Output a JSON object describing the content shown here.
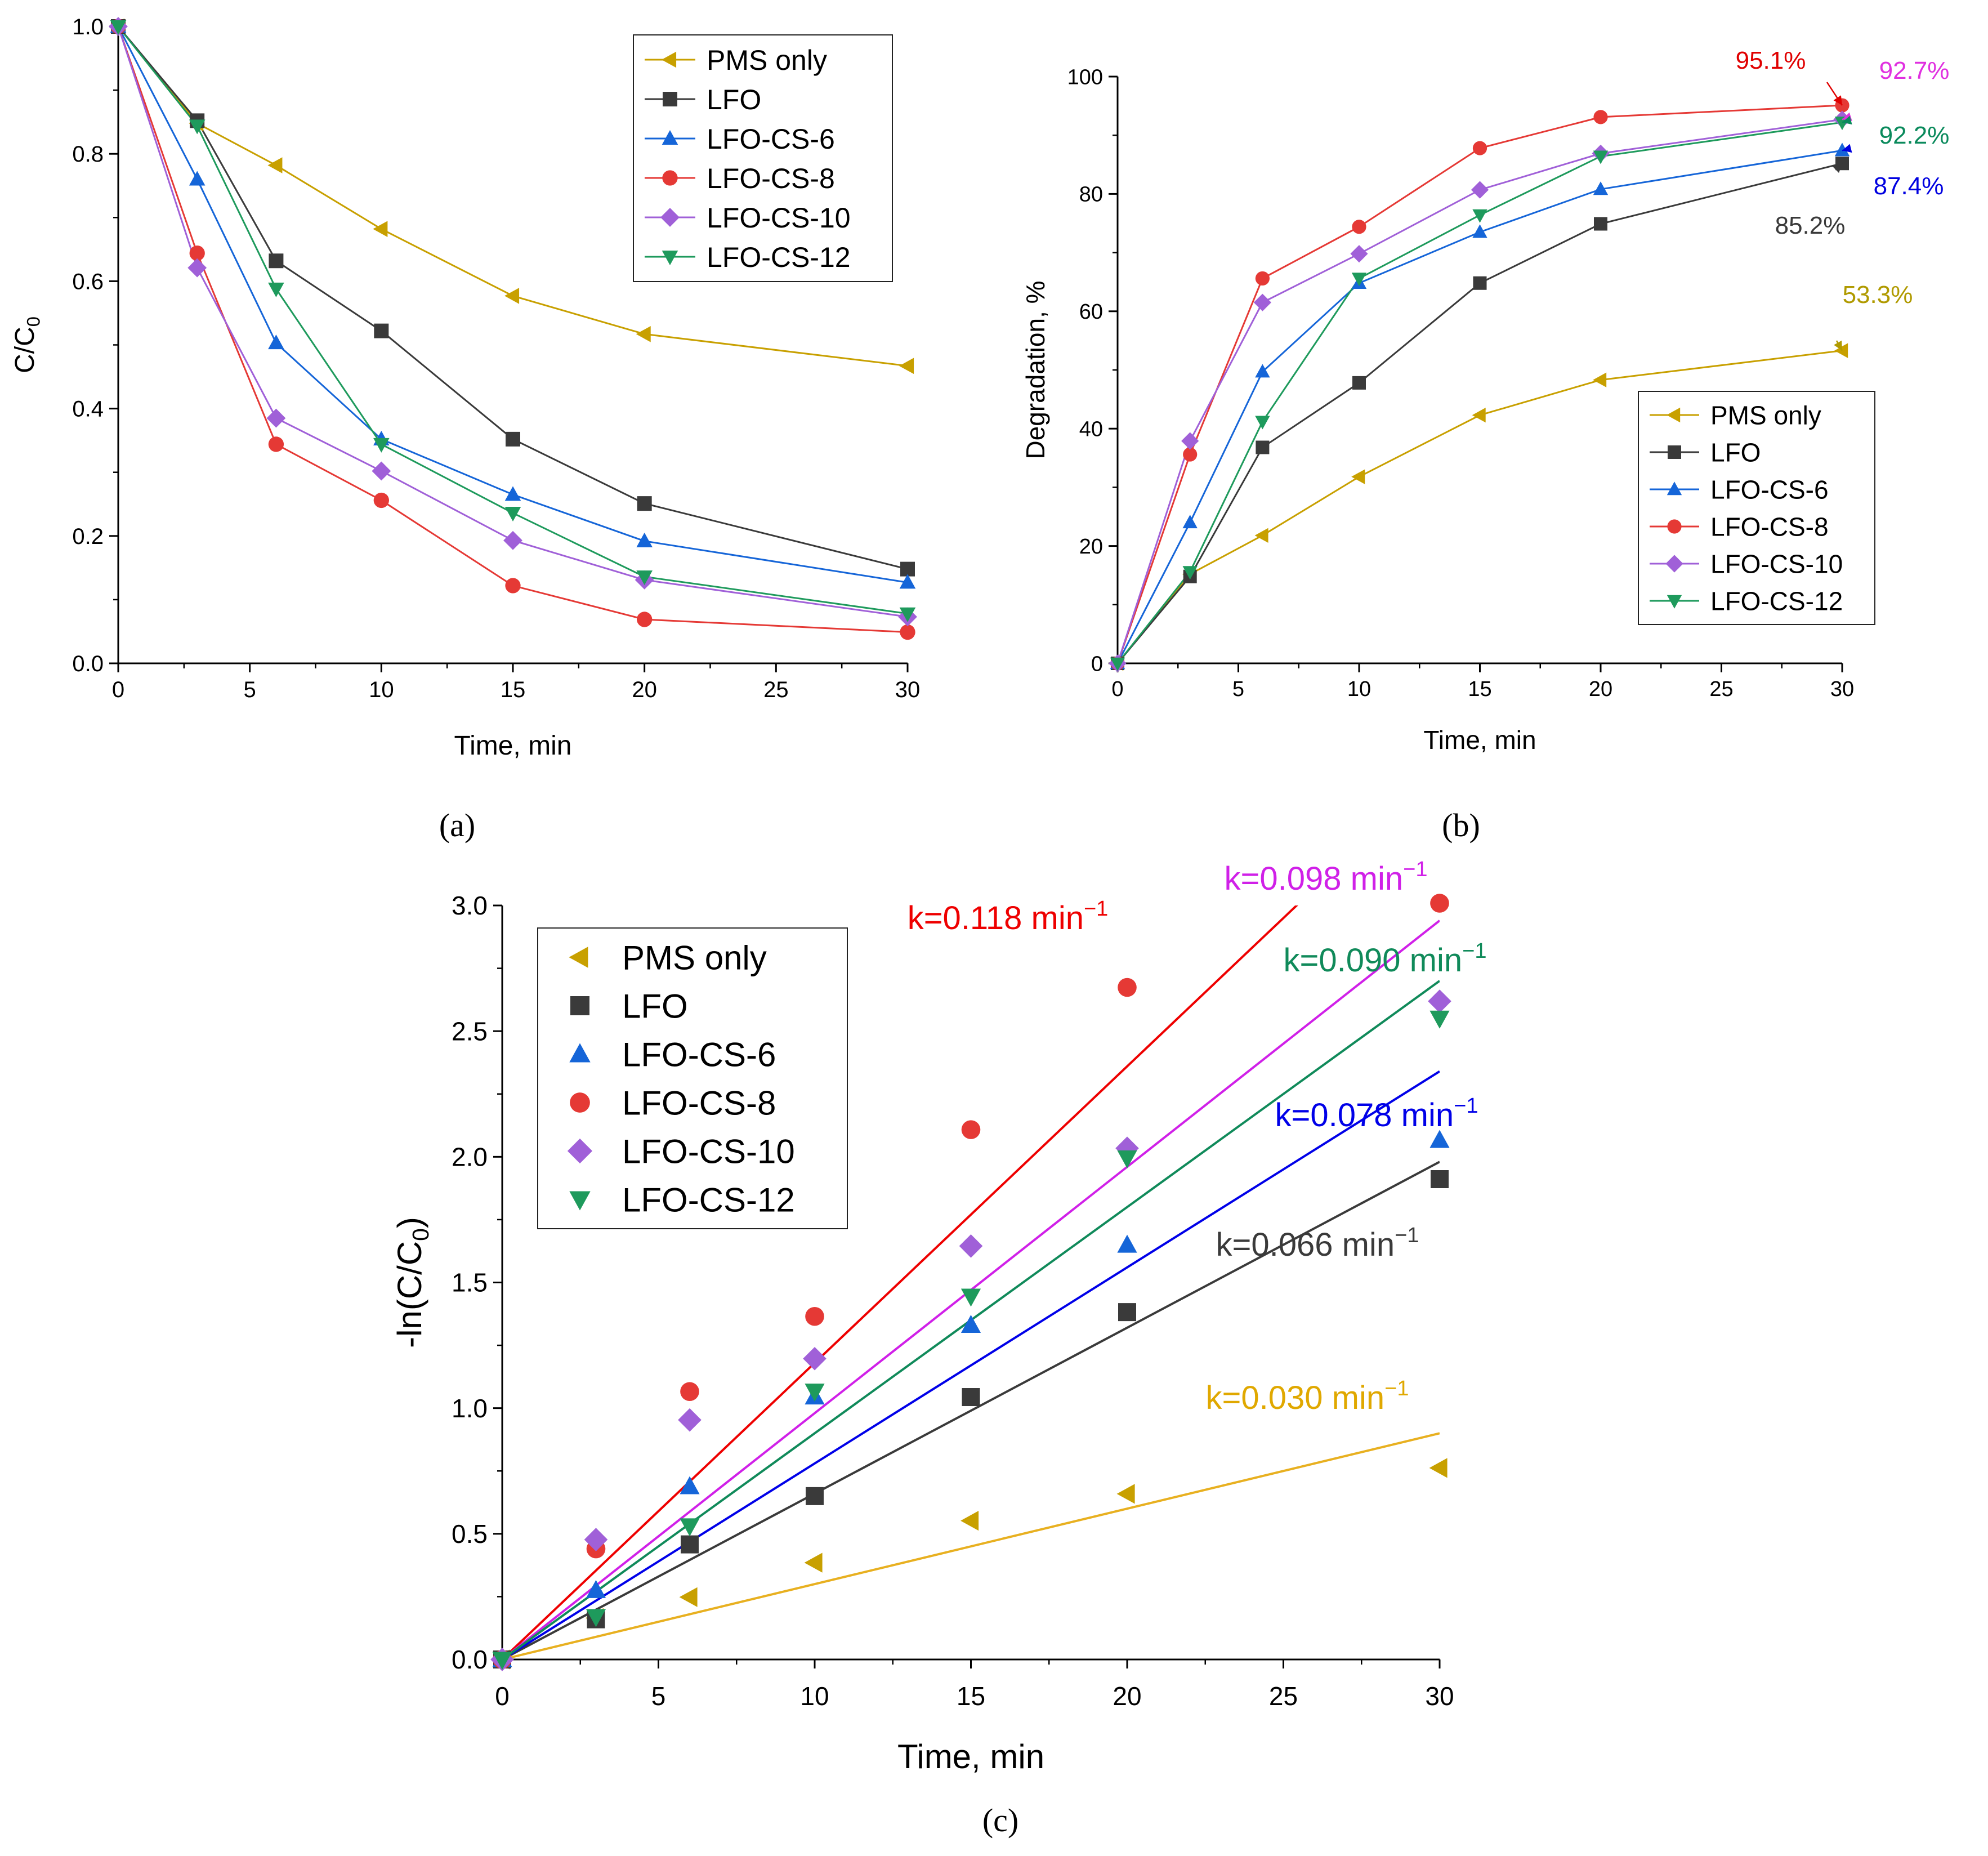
{
  "panels": {
    "a": {
      "label": "(a)"
    },
    "b": {
      "label": "(b)"
    },
    "c": {
      "label": "(c)"
    }
  },
  "chart_data": [
    {
      "id": "a",
      "type": "line",
      "title": "",
      "xlabel": "Time, min",
      "ylabel": "C/C",
      "ylabel_sub": "0",
      "xlim": [
        0,
        30
      ],
      "ylim": [
        0,
        1.0
      ],
      "xticks": [
        0,
        5,
        10,
        15,
        20,
        25,
        30
      ],
      "xticklabels": [
        "0",
        "5",
        "10",
        "15",
        "20",
        "25",
        "30"
      ],
      "yticks": [
        0,
        0.2,
        0.4,
        0.6,
        0.8,
        1.0
      ],
      "yticklabels": [
        "0.0",
        "0.2",
        "0.4",
        "0.6",
        "0.8",
        "1.0"
      ],
      "legend_position": "top-right",
      "x": [
        0,
        3,
        6,
        10,
        15,
        20,
        30
      ],
      "series": [
        {
          "name": "PMS only",
          "color": "#c8a000",
          "marker": "triangle-left",
          "values": [
            1.0,
            0.848,
            0.782,
            0.682,
            0.577,
            0.517,
            0.467
          ]
        },
        {
          "name": "LFO",
          "color": "#3a3a3a",
          "marker": "square",
          "values": [
            1.0,
            0.852,
            0.632,
            0.522,
            0.352,
            0.251,
            0.148
          ]
        },
        {
          "name": "LFO-CS-6",
          "color": "#1565d8",
          "marker": "triangle-up",
          "values": [
            1.0,
            0.76,
            0.503,
            0.352,
            0.265,
            0.192,
            0.127
          ]
        },
        {
          "name": "LFO-CS-8",
          "color": "#e53935",
          "marker": "circle",
          "values": [
            1.0,
            0.644,
            0.344,
            0.256,
            0.122,
            0.069,
            0.049
          ]
        },
        {
          "name": "LFO-CS-10",
          "color": "#a060d8",
          "marker": "diamond",
          "values": [
            1.0,
            0.621,
            0.385,
            0.302,
            0.193,
            0.131,
            0.073
          ]
        },
        {
          "name": "LFO-CS-12",
          "color": "#1e9a5c",
          "marker": "triangle-down",
          "values": [
            1.0,
            0.844,
            0.588,
            0.344,
            0.236,
            0.136,
            0.078
          ]
        }
      ]
    },
    {
      "id": "b",
      "type": "line",
      "title": "",
      "xlabel": "Time, min",
      "ylabel": "Degradation, %",
      "xlim": [
        0,
        30
      ],
      "ylim": [
        0,
        100
      ],
      "xticks": [
        0,
        5,
        10,
        15,
        20,
        25,
        30
      ],
      "xticklabels": [
        "0",
        "5",
        "10",
        "15",
        "20",
        "25",
        "30"
      ],
      "yticks": [
        0,
        20,
        40,
        60,
        80,
        100
      ],
      "yticklabels": [
        "0",
        "20",
        "40",
        "60",
        "80",
        "100"
      ],
      "legend_position": "bottom-right",
      "x": [
        0,
        3,
        6,
        10,
        15,
        20,
        30
      ],
      "series": [
        {
          "name": "PMS only",
          "color": "#c8a000",
          "marker": "triangle-left",
          "values": [
            0,
            15.2,
            21.8,
            31.8,
            42.3,
            48.3,
            53.3
          ]
        },
        {
          "name": "LFO",
          "color": "#3a3a3a",
          "marker": "square",
          "values": [
            0,
            14.8,
            36.8,
            47.8,
            64.8,
            74.9,
            85.2
          ]
        },
        {
          "name": "LFO-CS-6",
          "color": "#1565d8",
          "marker": "triangle-up",
          "values": [
            0,
            24.0,
            49.7,
            64.8,
            73.5,
            80.8,
            87.4
          ]
        },
        {
          "name": "LFO-CS-8",
          "color": "#e53935",
          "marker": "circle",
          "values": [
            0,
            35.6,
            65.6,
            74.4,
            87.8,
            93.1,
            95.1
          ]
        },
        {
          "name": "LFO-CS-10",
          "color": "#a060d8",
          "marker": "diamond",
          "values": [
            0,
            37.9,
            61.5,
            69.8,
            80.7,
            86.9,
            92.7
          ]
        },
        {
          "name": "LFO-CS-12",
          "color": "#1e9a5c",
          "marker": "triangle-down",
          "values": [
            0,
            15.6,
            41.2,
            65.6,
            76.4,
            86.4,
            92.2
          ]
        }
      ],
      "annotations": [
        {
          "text": "95.1%",
          "color": "#e00000",
          "x": 30,
          "y": 95.1
        },
        {
          "text": "92.7%",
          "color": "#e030e0",
          "x": 30,
          "y": 92.7
        },
        {
          "text": "92.2%",
          "color": "#0a8a5c",
          "x": 30,
          "y": 92.2
        },
        {
          "text": "87.4%",
          "color": "#0000e0",
          "x": 30,
          "y": 87.4
        },
        {
          "text": "85.2%",
          "color": "#3a3a3a",
          "x": 30,
          "y": 85.2
        },
        {
          "text": "53.3%",
          "color": "#b09a00",
          "x": 30,
          "y": 53.3
        }
      ]
    },
    {
      "id": "c",
      "type": "scatter",
      "title": "",
      "xlabel": "Time, min",
      "ylabel": "-ln(C/C",
      "ylabel_sub": "0",
      "ylabel_close": ")",
      "xlim": [
        0,
        30
      ],
      "ylim": [
        0,
        3.0
      ],
      "xticks": [
        0,
        5,
        10,
        15,
        20,
        25,
        30
      ],
      "xticklabels": [
        "0",
        "5",
        "10",
        "15",
        "20",
        "25",
        "30"
      ],
      "yticks": [
        0,
        0.5,
        1.0,
        1.5,
        2.0,
        2.5,
        3.0
      ],
      "yticklabels": [
        "0.0",
        "0.5",
        "1.0",
        "1.5",
        "2.0",
        "2.5",
        "3.0"
      ],
      "legend_position": "top-left",
      "x": [
        0,
        3,
        6,
        10,
        15,
        20,
        30
      ],
      "series": [
        {
          "name": "PMS only",
          "color": "#c8a000",
          "fit_color": "#e8b020",
          "marker": "triangle-left",
          "slope": 0.03,
          "values": [
            0,
            0.165,
            0.248,
            0.385,
            0.552,
            0.659,
            0.762
          ]
        },
        {
          "name": "LFO",
          "color": "#3a3a3a",
          "fit_color": "#3a3a3a",
          "marker": "square",
          "slope": 0.066,
          "values": [
            0,
            0.16,
            0.458,
            0.65,
            1.044,
            1.382,
            1.911
          ]
        },
        {
          "name": "LFO-CS-6",
          "color": "#1565d8",
          "fit_color": "#0000e8",
          "marker": "triangle-up",
          "slope": 0.078,
          "values": [
            0,
            0.275,
            0.688,
            1.045,
            1.33,
            1.649,
            2.066
          ]
        },
        {
          "name": "LFO-CS-8",
          "color": "#e53935",
          "fit_color": "#ee0000",
          "marker": "circle",
          "slope": 0.118,
          "values": [
            0,
            0.44,
            1.066,
            1.365,
            2.108,
            2.674,
            3.009
          ]
        },
        {
          "name": "LFO-CS-10",
          "color": "#a060d8",
          "fit_color": "#d020e8",
          "marker": "diamond",
          "slope": 0.098,
          "values": [
            0,
            0.477,
            0.953,
            1.197,
            1.645,
            2.034,
            2.619
          ]
        },
        {
          "name": "LFO-CS-12",
          "color": "#1e9a5c",
          "fit_color": "#108a5a",
          "marker": "triangle-down",
          "slope": 0.09,
          "values": [
            0,
            0.17,
            0.531,
            1.067,
            1.445,
            1.995,
            2.551
          ]
        }
      ],
      "annotations": [
        {
          "text": "k=0.118 min",
          "sup": "−1",
          "color": "#ee0000"
        },
        {
          "text": "k=0.098 min",
          "sup": "−1",
          "color": "#d020e8"
        },
        {
          "text": "k=0.090 min",
          "sup": "−1",
          "color": "#108a5a"
        },
        {
          "text": "k=0.078 min",
          "sup": "−1",
          "color": "#0000e8"
        },
        {
          "text": "k=0.066 min",
          "sup": "−1",
          "color": "#3a3a3a"
        },
        {
          "text": "k=0.030 min",
          "sup": "−1",
          "color": "#e0a800"
        }
      ]
    }
  ]
}
